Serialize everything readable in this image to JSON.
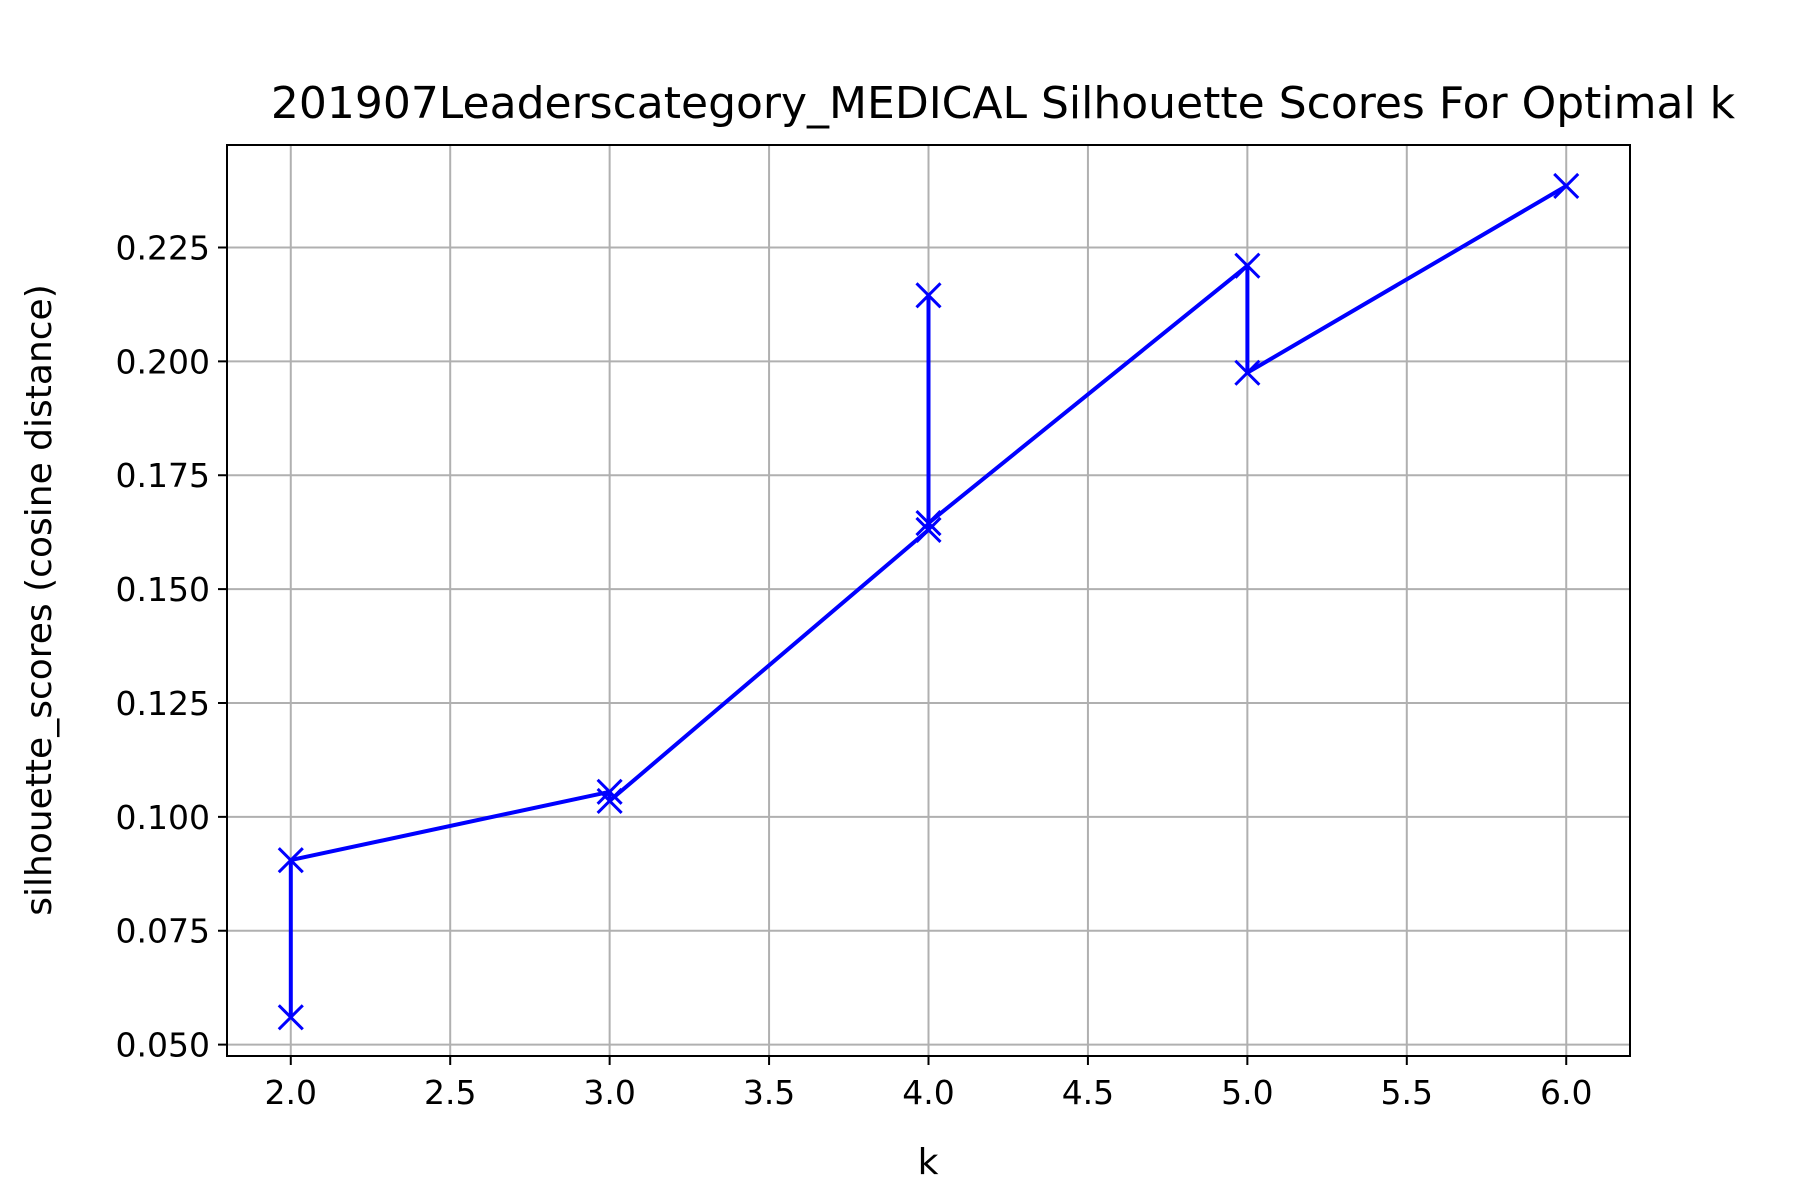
{
  "chart_data": {
    "type": "line",
    "title": "201907Leaderscategory_MEDICAL Silhouette Scores For Optimal k",
    "xlabel": "k",
    "ylabel": "silhouette_scores (cosine distance)",
    "xlim": [
      1.8,
      6.2
    ],
    "ylim": [
      0.0475,
      0.2475
    ],
    "xticks": [
      2.0,
      2.5,
      3.0,
      3.5,
      4.0,
      4.5,
      5.0,
      5.5,
      6.0
    ],
    "xtick_labels": [
      "2.0",
      "2.5",
      "3.0",
      "3.5",
      "4.0",
      "4.5",
      "5.0",
      "5.5",
      "6.0"
    ],
    "yticks": [
      0.05,
      0.075,
      0.1,
      0.125,
      0.15,
      0.175,
      0.2,
      0.225
    ],
    "ytick_labels": [
      "0.050",
      "0.075",
      "0.100",
      "0.125",
      "0.150",
      "0.175",
      "0.200",
      "0.225"
    ],
    "grid": true,
    "series": [
      {
        "color": "#0000ff",
        "marker": "x",
        "points": [
          {
            "x": 2,
            "y": 0.056
          },
          {
            "x": 2,
            "y": 0.0905
          },
          {
            "x": 3,
            "y": 0.1055
          },
          {
            "x": 3,
            "y": 0.1035
          },
          {
            "x": 4,
            "y": 0.163
          },
          {
            "x": 4,
            "y": 0.2145
          },
          {
            "x": 4,
            "y": 0.1645
          },
          {
            "x": 5,
            "y": 0.221
          },
          {
            "x": 5,
            "y": 0.1975
          },
          {
            "x": 6,
            "y": 0.2385
          }
        ]
      }
    ]
  }
}
